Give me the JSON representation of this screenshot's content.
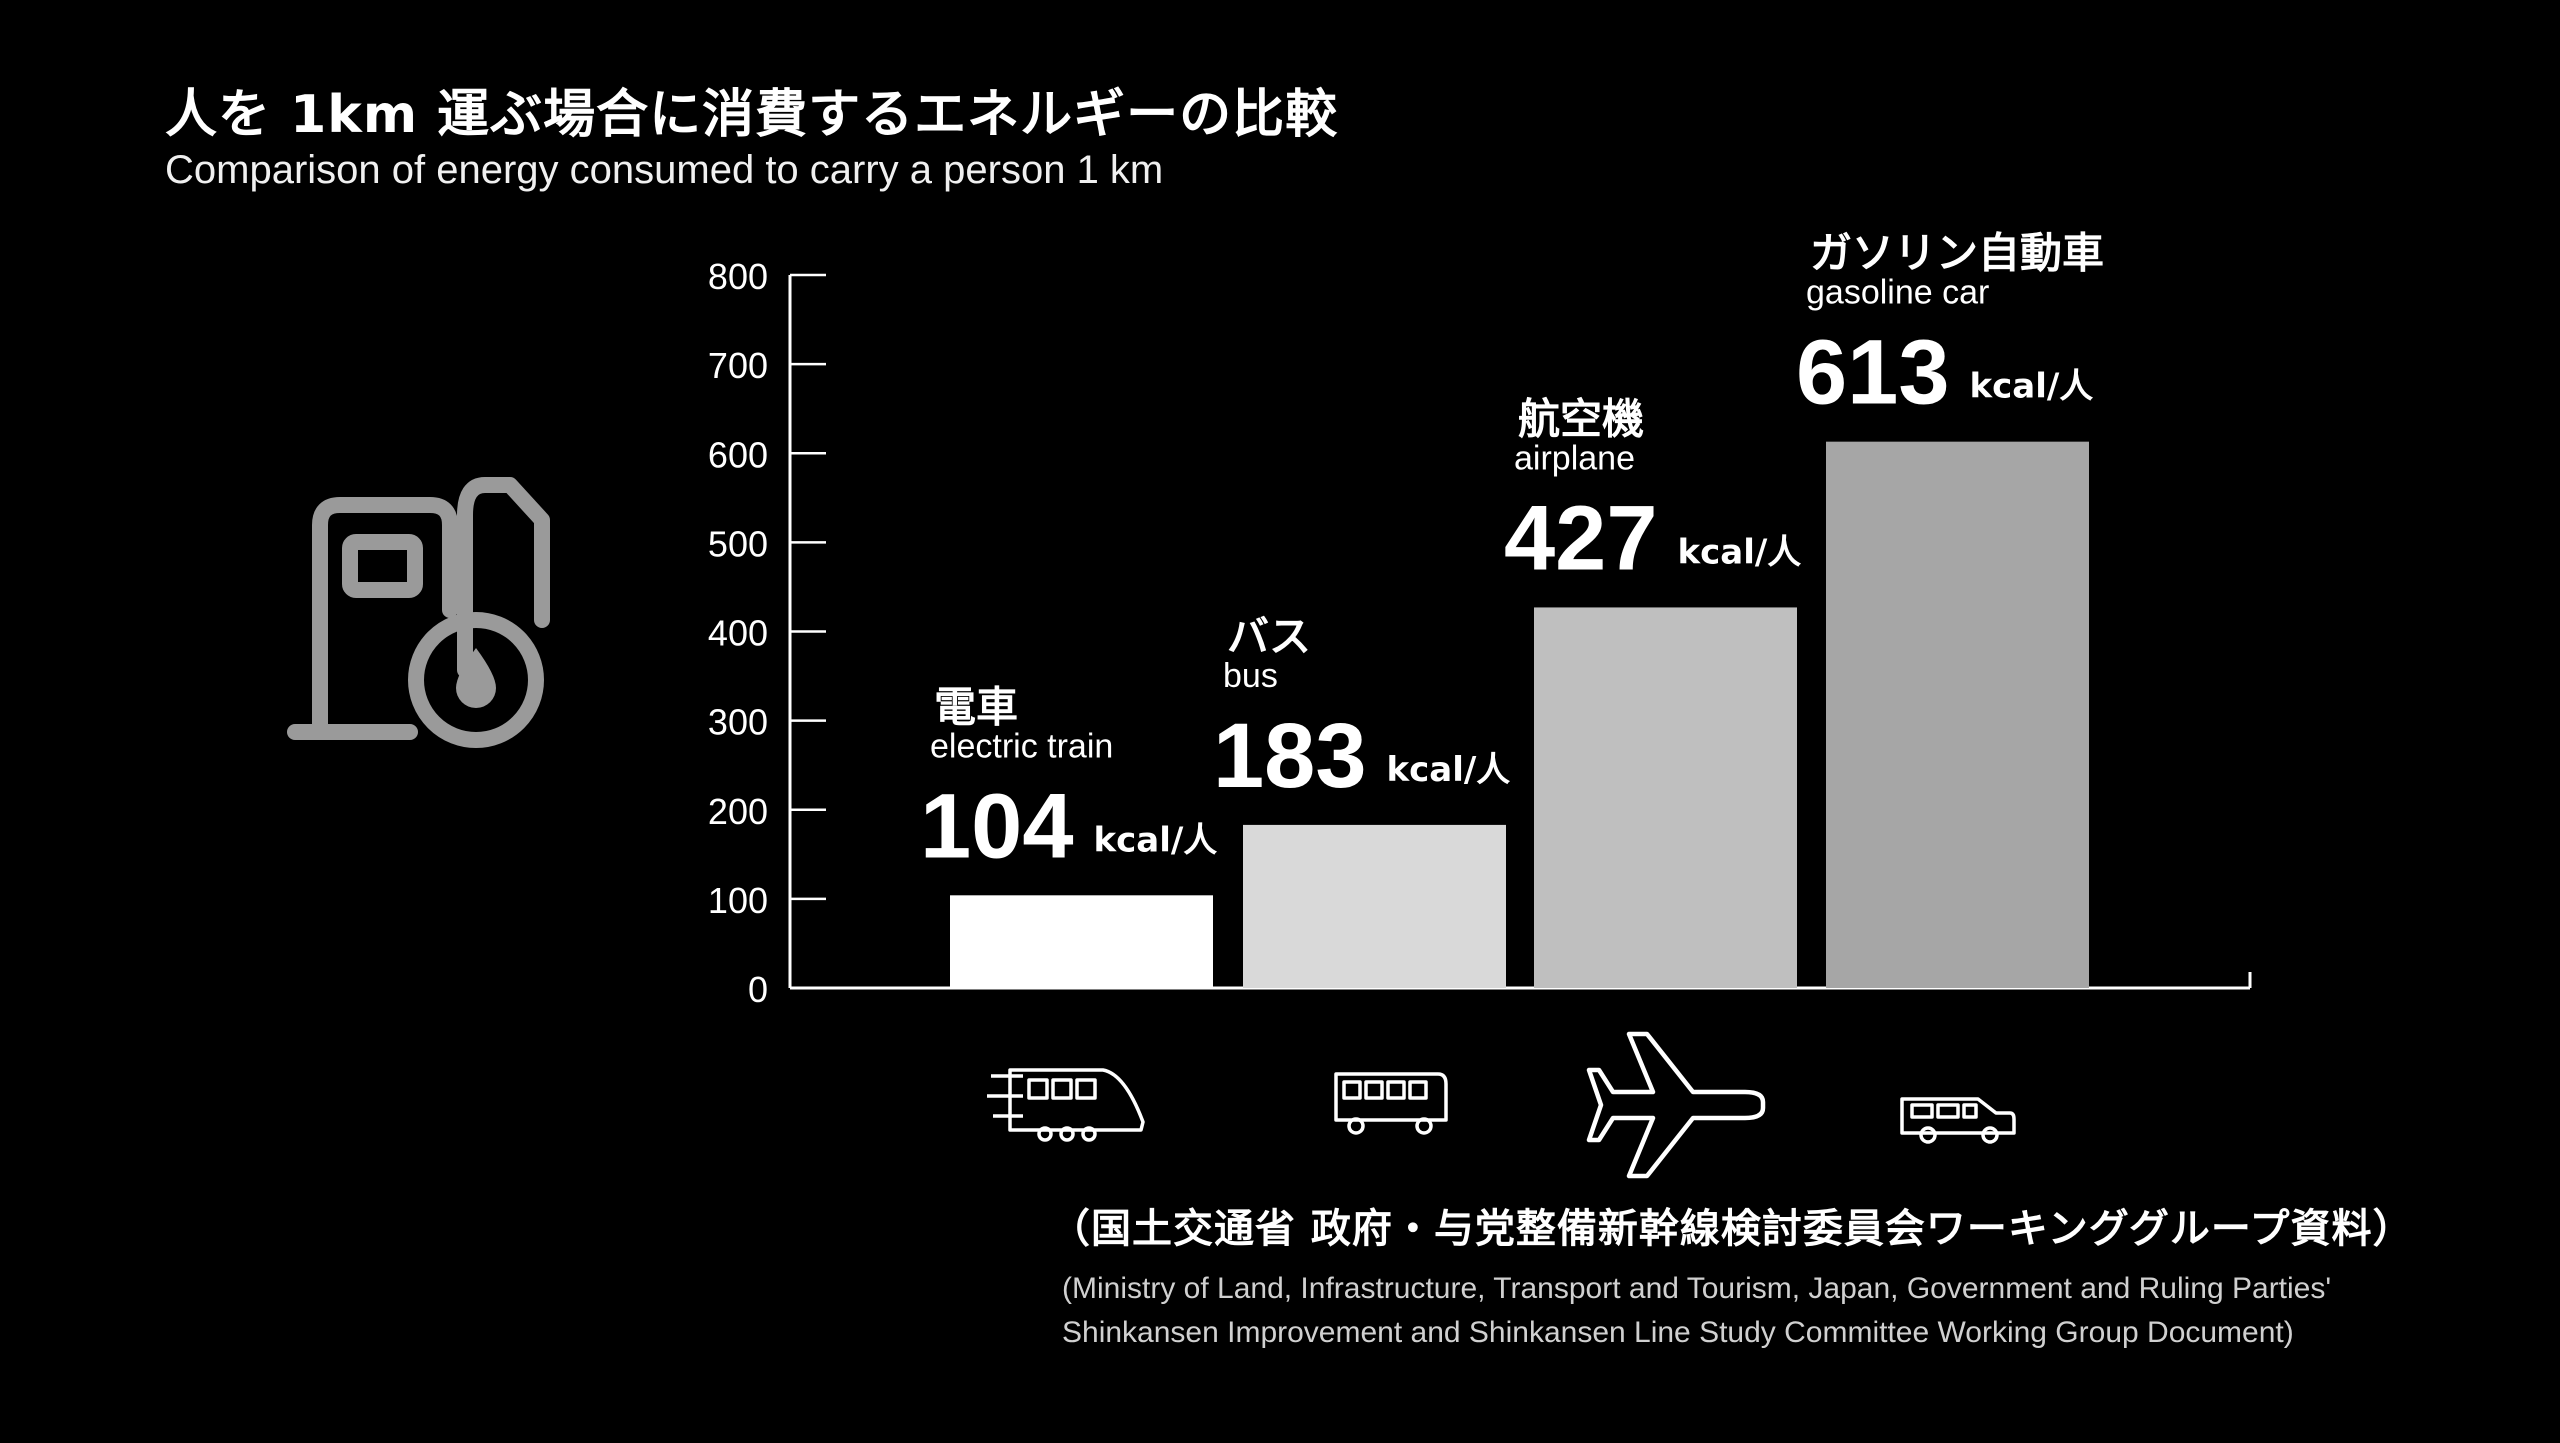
{
  "title": {
    "jp": "人を 1km 運ぶ場合に消費するエネルギーの比較",
    "en": "Comparison of energy consumed to carry a person 1 km"
  },
  "source": {
    "jp": "（国土交通省 政府・与党整備新幹線検討委員会ワーキンググループ資料）",
    "en_line1": "(Ministry of Land, Infrastructure, Transport and Tourism, Japan, Government and Ruling Parties'",
    "en_line2": "Shinkansen Improvement and Shinkansen Line Study Committee Working Group Document)"
  },
  "icons": {
    "decoration": "fuel-pump-icon",
    "vehicles": [
      "train-icon",
      "bus-icon",
      "airplane-icon",
      "car-icon"
    ]
  },
  "chart_data": {
    "type": "bar",
    "ylim": [
      0,
      800
    ],
    "yticks": [
      "0",
      "100",
      "200",
      "300",
      "400",
      "500",
      "600",
      "700",
      "800"
    ],
    "unit": "kcal/人",
    "categories": [
      {
        "jp": "電車",
        "en": "electric train"
      },
      {
        "jp": "バス",
        "en": "bus"
      },
      {
        "jp": "航空機",
        "en": "airplane"
      },
      {
        "jp": "ガソリン自動車",
        "en": "gasoline car"
      }
    ],
    "values": [
      104,
      183,
      427,
      613
    ],
    "value_labels": [
      "104",
      "183",
      "427",
      "613"
    ],
    "colors": [
      "#ffffff",
      "#d9d9d9",
      "#bfbfbf",
      "#a6a6a6"
    ],
    "grid": false
  }
}
